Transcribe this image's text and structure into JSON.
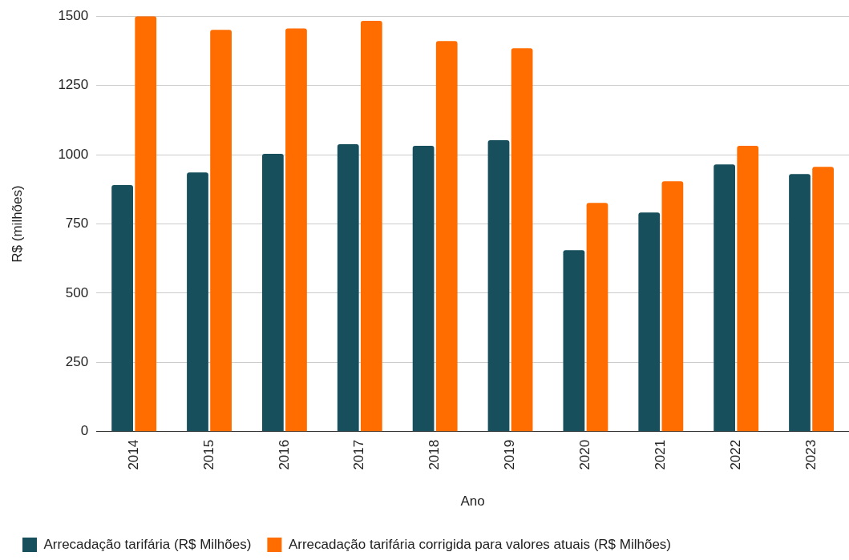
{
  "chart_data": {
    "type": "bar",
    "xlabel": "Ano",
    "ylabel": "R$ (milhões)",
    "categories": [
      "2014",
      "2015",
      "2016",
      "2017",
      "2018",
      "2019",
      "2020",
      "2021",
      "2022",
      "2023"
    ],
    "series": [
      {
        "name": "Arrecadação tarifária (R$ Milhões)",
        "color": "#174f5c",
        "values": [
          890,
          936,
          1003,
          1038,
          1032,
          1052,
          655,
          791,
          965,
          930
        ]
      },
      {
        "name": "Arrecadação tarifária corrigida para valores atuais (R$ Milhões)",
        "color": "#ff6d01",
        "values": [
          1500,
          1451,
          1456,
          1483,
          1410,
          1384,
          826,
          904,
          1032,
          956
        ]
      }
    ],
    "ylim": [
      0,
      1500
    ],
    "yticks": [
      0,
      250,
      500,
      750,
      1000,
      1250,
      1500
    ],
    "grid": "y",
    "legend": "bottom"
  }
}
